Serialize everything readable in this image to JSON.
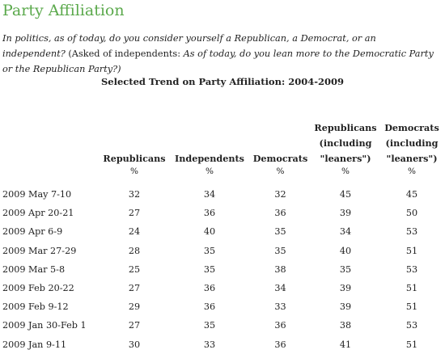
{
  "title": "Party Affiliation",
  "question": {
    "part1": "In politics, as of today, do you consider yourself a Republican, a Democrat, or an independent? ",
    "part2": "(Asked of independents: ",
    "part3": "As of today, do you lean more to the Democratic Party or the Republican Party?)"
  },
  "subtitle": "Selected Trend on Party Affiliation: 2004-2009",
  "table": {
    "headers": [
      "",
      "Republicans",
      "Independents",
      "Democrats",
      "Republicans (including \"leaners\")",
      "Democrats (including \"leaners\")"
    ],
    "unit_row": [
      "",
      "%",
      "%",
      "%",
      "%",
      "%"
    ],
    "rows": [
      [
        "2009 May 7-10",
        "32",
        "34",
        "32",
        "45",
        "45"
      ],
      [
        "2009 Apr 20-21",
        "27",
        "36",
        "36",
        "39",
        "50"
      ],
      [
        "2009 Apr 6-9",
        "24",
        "40",
        "35",
        "34",
        "53"
      ],
      [
        "2009 Mar 27-29",
        "28",
        "35",
        "35",
        "40",
        "51"
      ],
      [
        "2009 Mar 5-8",
        "25",
        "35",
        "38",
        "35",
        "53"
      ],
      [
        "2009 Feb 20-22",
        "27",
        "36",
        "34",
        "39",
        "51"
      ],
      [
        "2009 Feb 9-12",
        "29",
        "36",
        "33",
        "39",
        "51"
      ],
      [
        "2009 Jan 30-Feb 1",
        "27",
        "35",
        "36",
        "38",
        "53"
      ],
      [
        "2009 Jan 9-11",
        "30",
        "33",
        "36",
        "41",
        "51"
      ]
    ]
  },
  "colors": {
    "title": "#5ba94c",
    "text": "#222222"
  }
}
